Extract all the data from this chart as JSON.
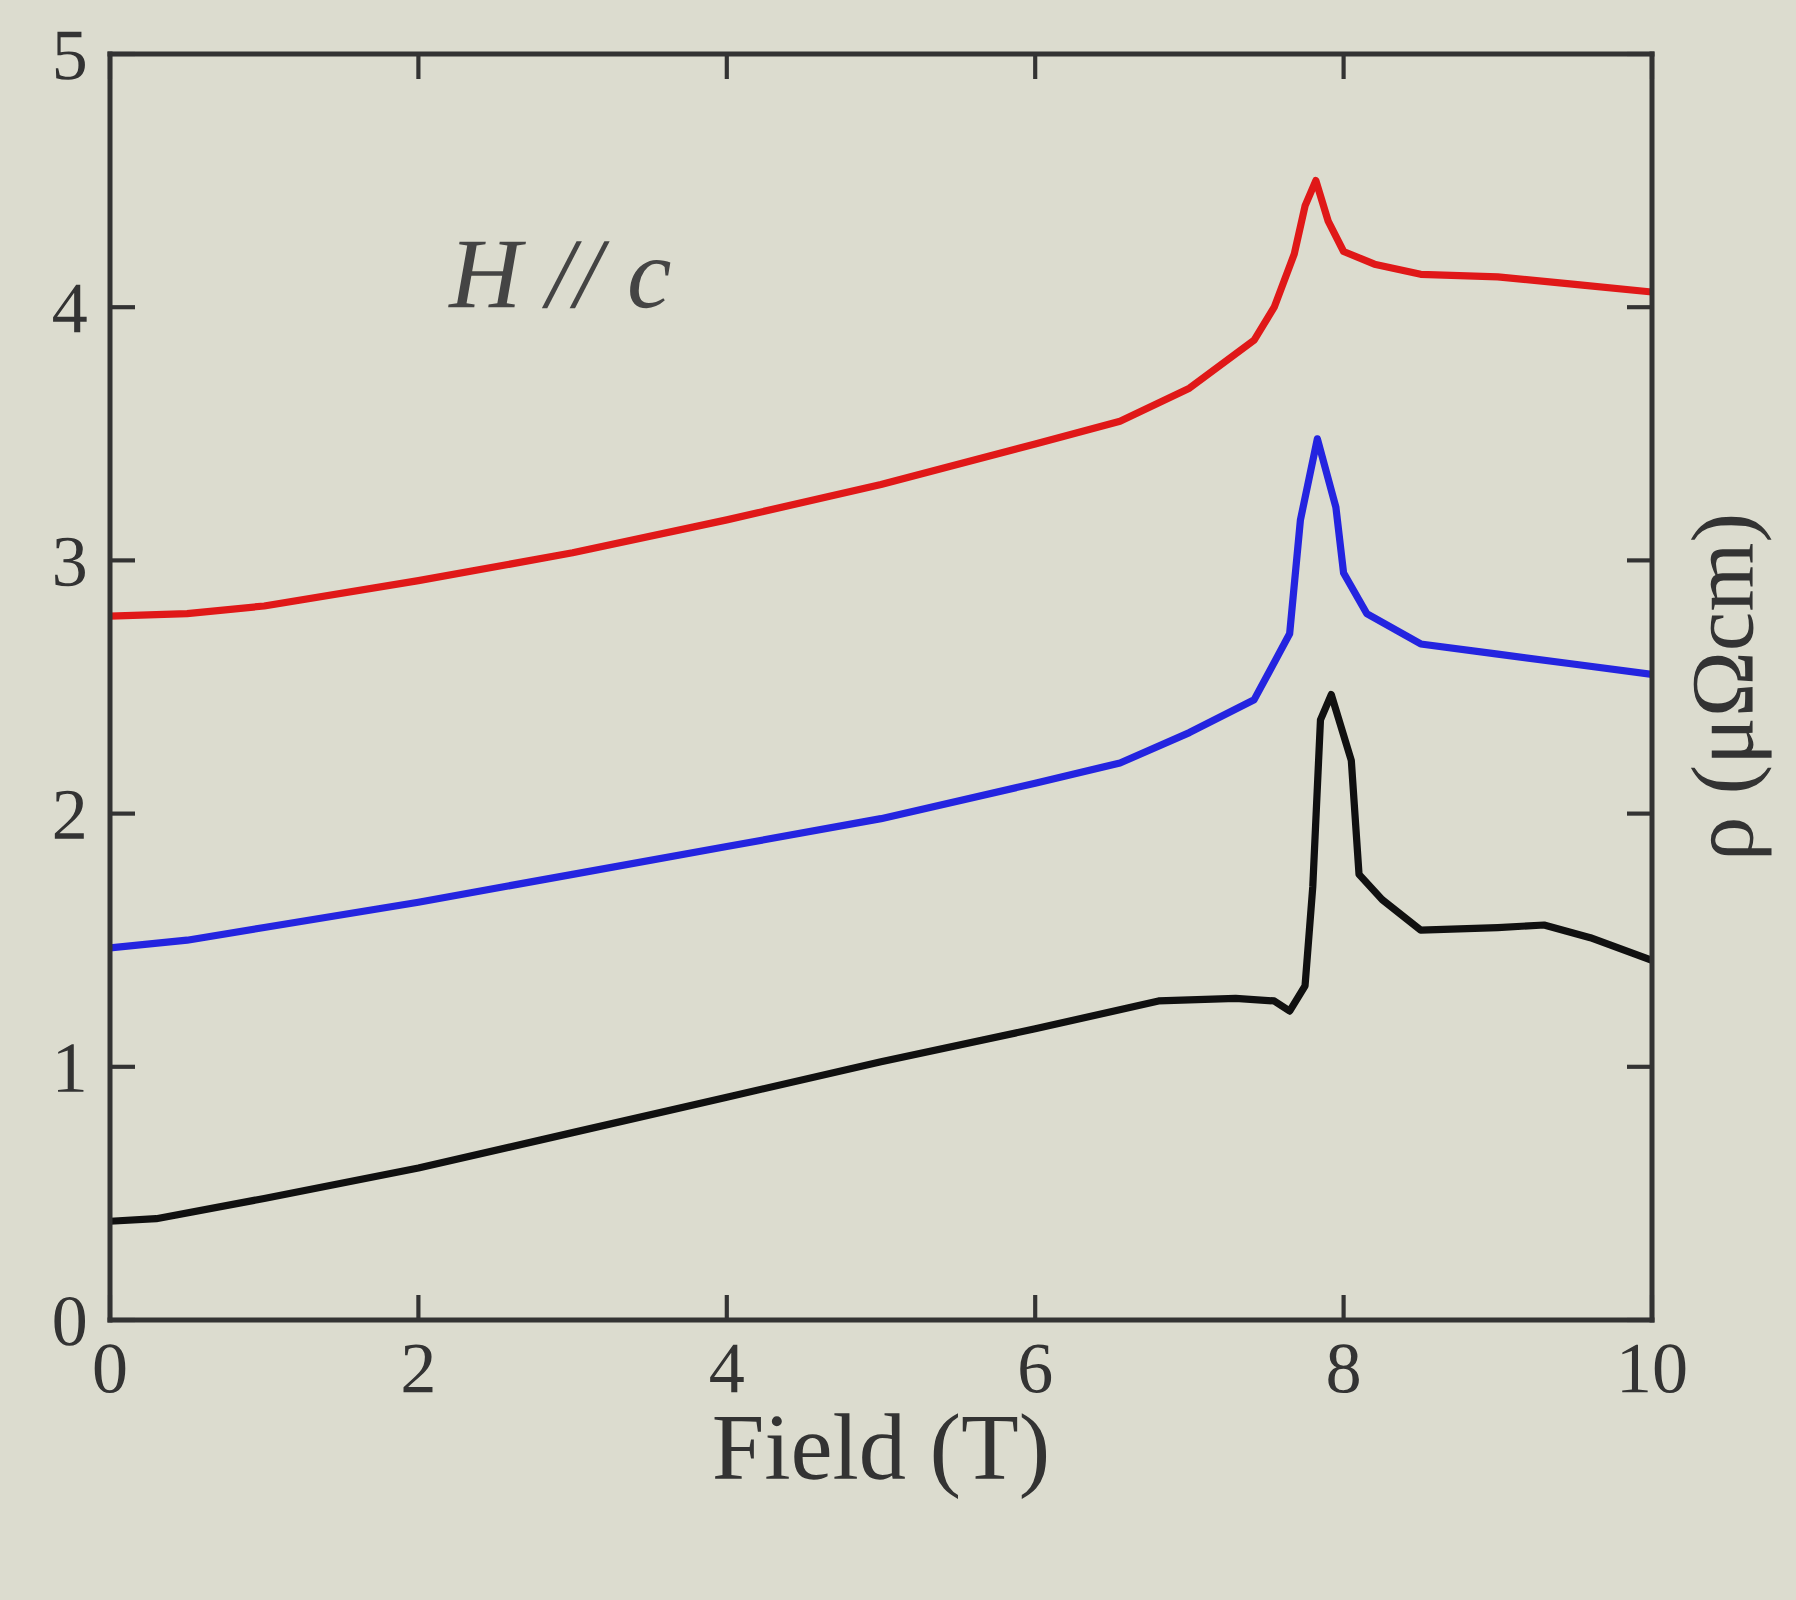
{
  "chart_data": {
    "type": "line",
    "xlabel": "Field (T)",
    "ylabel": "ρ (μΩcm)",
    "annotations": [
      "H // c"
    ],
    "xlim": [
      0,
      10
    ],
    "xticks": [
      0,
      2,
      4,
      6,
      8,
      10
    ],
    "ylim": [
      0,
      5
    ],
    "yticks": [
      0,
      1,
      2,
      3,
      4,
      5
    ],
    "grid": false,
    "legend": false,
    "marker": "none",
    "line_style": "solid",
    "series": [
      {
        "color": "#e01818",
        "x": [
          0,
          0.5,
          1,
          2,
          3,
          4,
          5,
          6,
          6.55,
          7,
          7.42,
          7.55,
          7.68,
          7.75,
          7.82,
          7.9,
          8.0,
          8.2,
          8.5,
          9,
          9.5,
          10
        ],
        "values": [
          2.78,
          2.79,
          2.82,
          2.92,
          3.03,
          3.16,
          3.3,
          3.46,
          3.55,
          3.68,
          3.87,
          4.0,
          4.21,
          4.4,
          4.5,
          4.34,
          4.22,
          4.17,
          4.13,
          4.12,
          4.09,
          4.06
        ]
      },
      {
        "color": "#2424e0",
        "x": [
          0,
          0.5,
          1,
          2,
          3,
          4,
          5,
          6,
          6.55,
          7,
          7.42,
          7.65,
          7.72,
          7.83,
          7.95,
          8.0,
          8.15,
          8.5,
          9,
          9.5,
          10
        ],
        "values": [
          1.47,
          1.5,
          1.55,
          1.65,
          1.76,
          1.87,
          1.98,
          2.12,
          2.2,
          2.32,
          2.45,
          2.71,
          3.16,
          3.48,
          3.21,
          2.95,
          2.79,
          2.67,
          2.63,
          2.59,
          2.55
        ]
      },
      {
        "color": "#101010",
        "x": [
          0,
          0.3,
          1,
          2,
          3,
          4,
          5,
          6,
          6.8,
          7.3,
          7.55,
          7.65,
          7.75,
          7.8,
          7.85,
          7.92,
          8.05,
          8.1,
          8.25,
          8.5,
          9.0,
          9.3,
          9.6,
          10
        ],
        "values": [
          0.39,
          0.4,
          0.48,
          0.6,
          0.74,
          0.88,
          1.02,
          1.15,
          1.26,
          1.27,
          1.26,
          1.22,
          1.32,
          1.71,
          2.37,
          2.47,
          2.21,
          1.76,
          1.66,
          1.54,
          1.55,
          1.56,
          1.51,
          1.42
        ]
      }
    ]
  }
}
